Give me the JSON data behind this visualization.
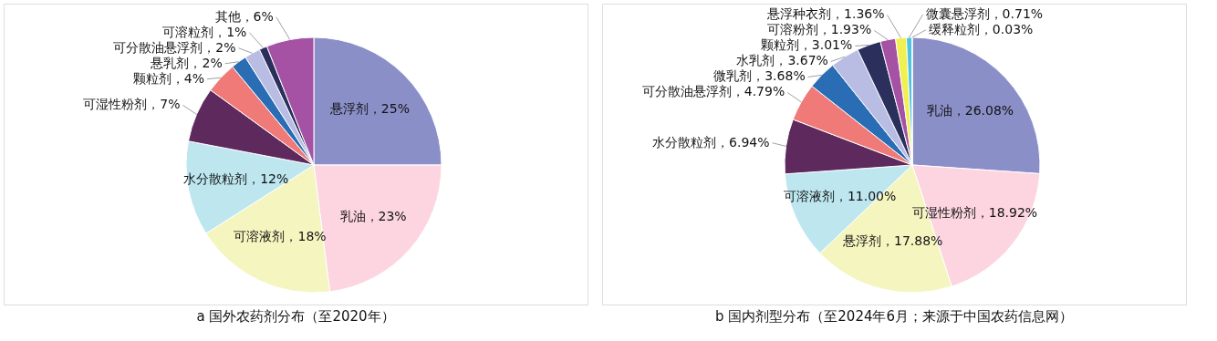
{
  "chart_data": [
    {
      "type": "pie",
      "title": "a  国外农药剂分布（至2020年）",
      "categories": [
        "悬浮剂",
        "乳油",
        "可溶液剂",
        "水分散粒剂",
        "可湿性粉剂",
        "颗粒剂",
        "悬乳剂",
        "可分散油悬浮剂",
        "可溶粒剂",
        "其他"
      ],
      "values": [
        25,
        23,
        18,
        12,
        7,
        4,
        2,
        2,
        1,
        6
      ],
      "value_labels": [
        "25%",
        "23%",
        "18%",
        "12%",
        "7%",
        "4%",
        "2%",
        "2%",
        "1%",
        "6%"
      ],
      "colors": [
        "#8b8fc8",
        "#fcd5e0",
        "#f5f5c0",
        "#bde6ef",
        "#5e2a5e",
        "#f07a78",
        "#2a6db5",
        "#b9bde3",
        "#2a2f5c",
        "#a552a5"
      ],
      "legend": false
    },
    {
      "type": "pie",
      "title": "b  国内剂型分布（至2024年6月；来源于中国农药信息网）",
      "categories": [
        "乳油",
        "可湿性粉剂",
        "悬浮剂",
        "可溶液剂",
        "水分散粒剂",
        "可分散油悬浮剂",
        "微乳剂",
        "水乳剂",
        "颗粒剂",
        "可溶粉剂",
        "悬浮种衣剂",
        "微囊悬浮剂",
        "缓释粒剂"
      ],
      "values": [
        26.08,
        18.92,
        17.88,
        11.0,
        6.94,
        4.79,
        3.68,
        3.67,
        3.01,
        1.93,
        1.36,
        0.71,
        0.03
      ],
      "value_labels": [
        "26.08%",
        "18.92%",
        "17.88%",
        "11.00%",
        "6.94%",
        "4.79%",
        "3.68%",
        "3.67%",
        "3.01%",
        "1.93%",
        "1.36%",
        "0.71%",
        "0.03%"
      ],
      "colors": [
        "#8b8fc8",
        "#fcd5e0",
        "#f5f5c0",
        "#bde6ef",
        "#5e2a5e",
        "#f07a78",
        "#2a6db5",
        "#b9bde3",
        "#2a2f5c",
        "#a552a5",
        "#f0f050",
        "#4ec3e0",
        "#9090c0"
      ],
      "legend": false
    }
  ]
}
